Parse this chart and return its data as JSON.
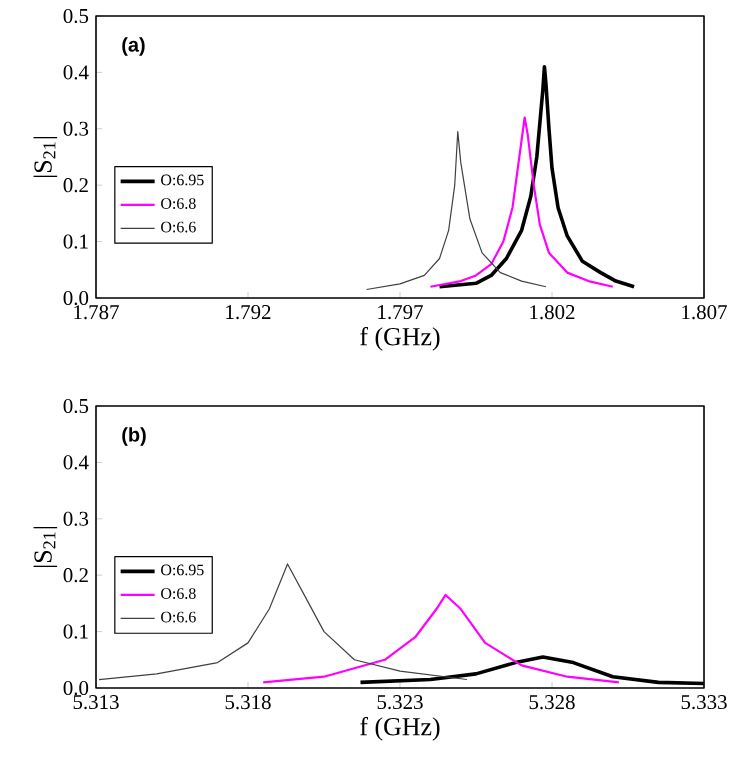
{
  "chart_data": [
    {
      "type": "line",
      "annotations": [
        "(a)"
      ],
      "xlabel": "f (GHz)",
      "ylabel": "|S$_{21}$|",
      "xlim": [
        1.787,
        1.807
      ],
      "xticks": [
        1.787,
        1.792,
        1.797,
        1.802,
        1.807
      ],
      "ylim": [
        0,
        0.5
      ],
      "yticks": [
        {
          "value": 0,
          "label": "0.0"
        },
        0.1,
        0.2,
        0.3,
        0.4,
        0.5
      ],
      "legend": "left",
      "grid": false,
      "series": [
        {
          "name": "O:6.95",
          "color": "#000000",
          "x": [
            1.7983,
            1.7995,
            1.8,
            1.8005,
            1.801,
            1.8013,
            1.8015,
            1.8016,
            1.8017,
            1.80175,
            1.8018,
            1.8019,
            1.802,
            1.8022,
            1.8025,
            1.803,
            1.8036,
            1.8041,
            1.8047
          ],
          "values": [
            0.02,
            0.026,
            0.04,
            0.07,
            0.12,
            0.18,
            0.25,
            0.31,
            0.37,
            0.41,
            0.38,
            0.3,
            0.23,
            0.16,
            0.11,
            0.065,
            0.045,
            0.03,
            0.02
          ]
        },
        {
          "name": "O:6.8",
          "color": "#ff00ff",
          "x": [
            1.798,
            1.799,
            1.7995,
            1.8,
            1.8004,
            1.8007,
            1.8009,
            1.8011,
            1.8012,
            1.8014,
            1.8016,
            1.8019,
            1.8025,
            1.8032,
            1.804
          ],
          "values": [
            0.02,
            0.03,
            0.04,
            0.06,
            0.1,
            0.16,
            0.24,
            0.32,
            0.29,
            0.2,
            0.13,
            0.08,
            0.045,
            0.03,
            0.02
          ]
        },
        {
          "name": "O:6.6",
          "color": "#404040",
          "x": [
            1.7959,
            1.797,
            1.7978,
            1.7983,
            1.7986,
            1.7988,
            1.7989,
            1.799,
            1.7993,
            1.7997,
            1.8003,
            1.801,
            1.8018
          ],
          "values": [
            0.015,
            0.025,
            0.04,
            0.07,
            0.12,
            0.2,
            0.295,
            0.24,
            0.14,
            0.08,
            0.045,
            0.03,
            0.02
          ]
        }
      ]
    },
    {
      "type": "line",
      "annotations": [
        "(b)"
      ],
      "xlabel": "f (GHz)",
      "ylabel": "|S$_{21}$|",
      "xlim": [
        5.313,
        5.333
      ],
      "xticks": [
        5.313,
        5.318,
        5.323,
        5.328,
        5.333
      ],
      "ylim": [
        0,
        0.5
      ],
      "yticks": [
        {
          "value": 0,
          "label": "0.0"
        },
        0.1,
        0.2,
        0.3,
        0.4,
        0.5
      ],
      "legend": "left",
      "grid": false,
      "series": [
        {
          "name": "O:6.95",
          "color": "#000000",
          "x": [
            5.3217,
            5.324,
            5.3255,
            5.3268,
            5.3277,
            5.3287,
            5.33,
            5.3315,
            5.333
          ],
          "values": [
            0.01,
            0.015,
            0.025,
            0.045,
            0.055,
            0.045,
            0.02,
            0.01,
            0.008
          ]
        },
        {
          "name": "O:6.8",
          "color": "#ff00ff",
          "x": [
            5.3185,
            5.3205,
            5.3225,
            5.3235,
            5.3242,
            5.3245,
            5.325,
            5.3258,
            5.327,
            5.3285,
            5.3302
          ],
          "values": [
            0.01,
            0.02,
            0.05,
            0.09,
            0.14,
            0.165,
            0.14,
            0.08,
            0.04,
            0.02,
            0.01
          ]
        },
        {
          "name": "O:6.6",
          "color": "#404040",
          "x": [
            5.3131,
            5.315,
            5.317,
            5.318,
            5.3187,
            5.3193,
            5.3198,
            5.3205,
            5.3215,
            5.323,
            5.3252
          ],
          "values": [
            0.015,
            0.025,
            0.045,
            0.08,
            0.14,
            0.22,
            0.17,
            0.1,
            0.05,
            0.03,
            0.015
          ]
        }
      ]
    }
  ]
}
